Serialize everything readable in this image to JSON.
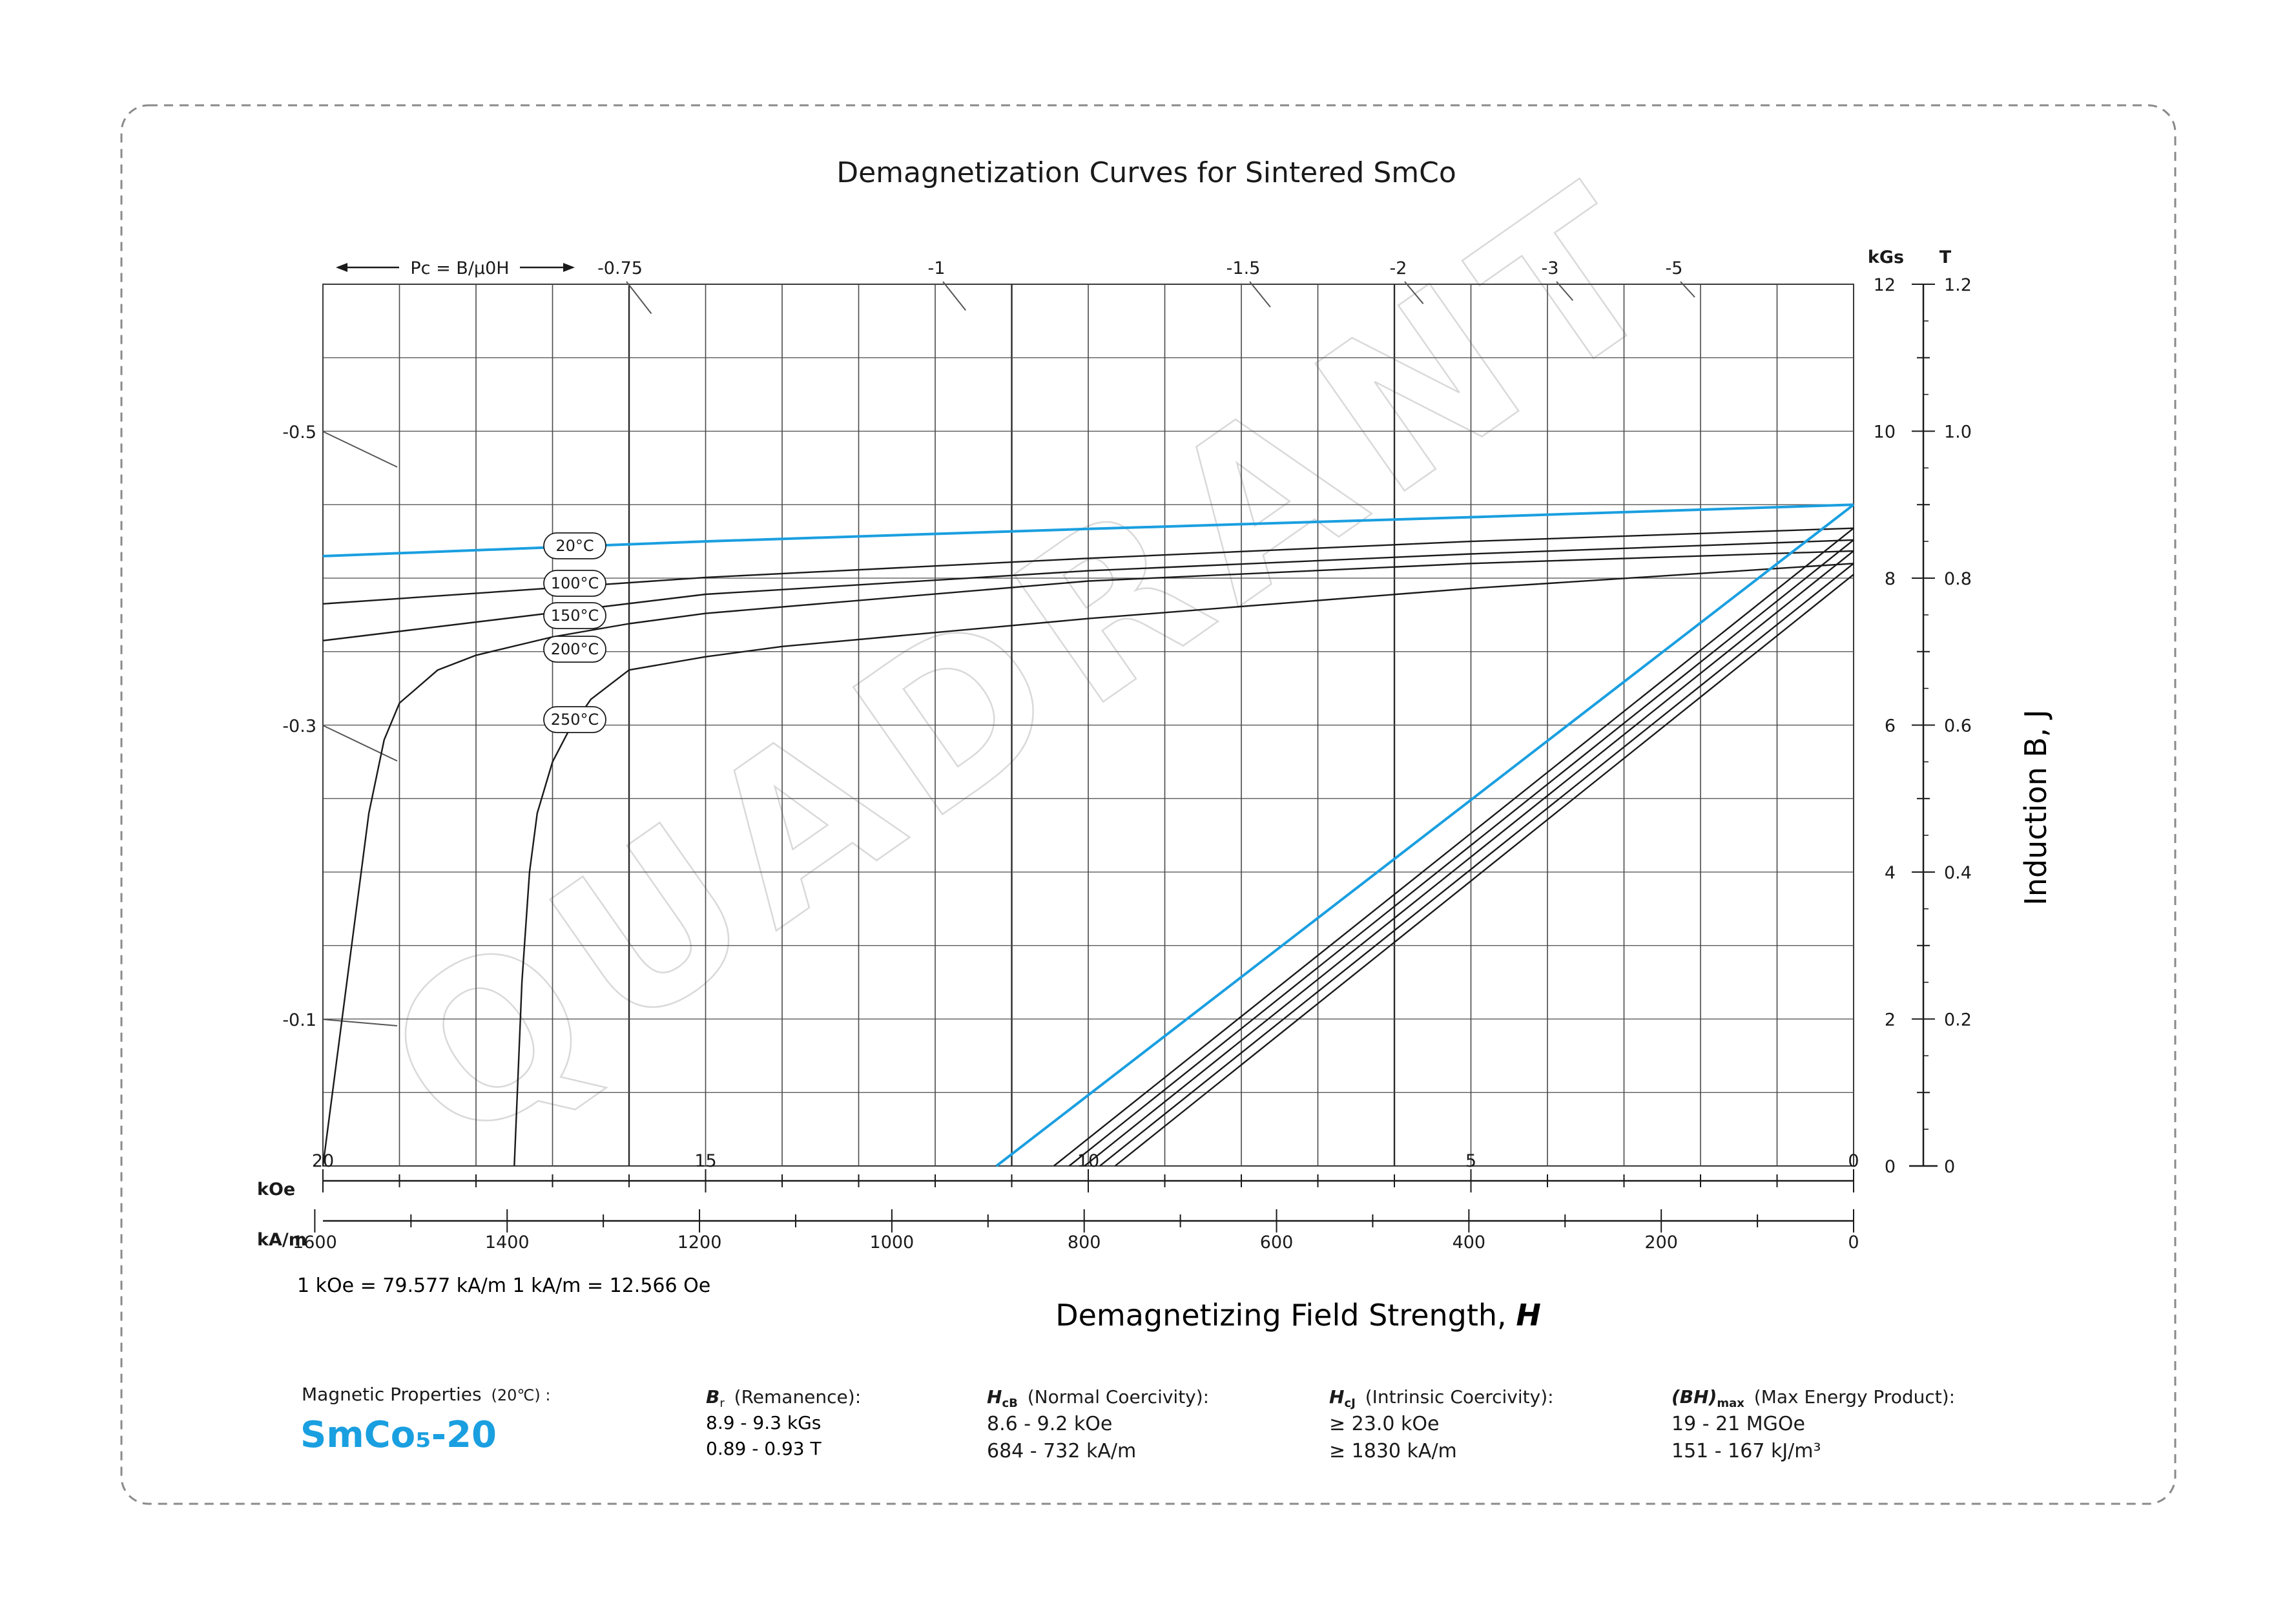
{
  "chart_data": {
    "type": "line",
    "title": "Demagnetization Curves for Sintered SmCo",
    "xlabel": "Demagnetizing Field Strength, H",
    "ylabel": "Induction B, J",
    "x_unit_top": "kOe",
    "x_unit_bottom": "kA/m",
    "y_unit_left": "kGs",
    "y_unit_right": "T",
    "xlim": [
      20,
      0
    ],
    "ylim": [
      0,
      12
    ],
    "x_ticks_koe": [
      "20",
      "15",
      "10",
      "5",
      "0"
    ],
    "x_ticks_kam": [
      "1600",
      "1400",
      "1200",
      "1000",
      "800",
      "600",
      "400",
      "200",
      "0"
    ],
    "y_ticks_kgs": [
      "0",
      "2",
      "4",
      "6",
      "8",
      "10",
      "12"
    ],
    "y_ticks_t": [
      "0",
      "0.2",
      "0.4",
      "0.6",
      "0.8",
      "1.0",
      "1.2"
    ],
    "pc_header": "Pc = B/μ0H",
    "pc_labels_top": [
      "-0.75",
      "-1",
      "-1.5",
      "-2",
      "-3",
      "-5"
    ],
    "pc_labels_left": [
      "-0.5",
      "-0.3",
      "-0.1"
    ],
    "conversion_note": "1 kOe = 79.577 kA/m   1 kA/m = 12.566 Oe",
    "grid": true,
    "series": [
      {
        "name": "20°C",
        "color": "#1a9fe0",
        "kind": "J",
        "x": [
          20,
          15,
          10,
          5,
          0
        ],
        "y": [
          8.3,
          8.5,
          8.67,
          8.83,
          9.0
        ]
      },
      {
        "name": "100°C",
        "color": "#1a1a1a",
        "kind": "J",
        "x": [
          20,
          15,
          10,
          5,
          0
        ],
        "y": [
          7.65,
          8.01,
          8.27,
          8.5,
          8.68
        ]
      },
      {
        "name": "150°C",
        "color": "#1a1a1a",
        "kind": "J",
        "x": [
          20,
          15,
          10,
          5,
          0
        ],
        "y": [
          7.15,
          7.78,
          8.1,
          8.33,
          8.52
        ]
      },
      {
        "name": "200°C",
        "color": "#1a1a1a",
        "kind": "J",
        "x": [
          20,
          19.6,
          19.4,
          19.2,
          19.0,
          18.5,
          18.0,
          17.0,
          16.0,
          15.0,
          10.0,
          5.0,
          0
        ],
        "y": [
          0,
          3.2,
          4.8,
          5.8,
          6.3,
          6.75,
          6.95,
          7.2,
          7.38,
          7.52,
          7.96,
          8.2,
          8.37
        ]
      },
      {
        "name": "250°C",
        "color": "#1a1a1a",
        "kind": "J",
        "x": [
          17.5,
          17.4,
          17.3,
          17.2,
          17.0,
          16.8,
          16.5,
          16.0,
          15.0,
          14.0,
          10.0,
          5.0,
          0
        ],
        "y": [
          0,
          2.5,
          4.0,
          4.8,
          5.5,
          5.9,
          6.35,
          6.75,
          6.93,
          7.07,
          7.45,
          7.86,
          8.2
        ]
      },
      {
        "name": "",
        "color": "#1a9fe0",
        "kind": "B",
        "x": [
          11.2,
          0
        ],
        "y": [
          0,
          9.0
        ]
      },
      {
        "name": "",
        "color": "#1a1a1a",
        "kind": "B",
        "x": [
          10.45,
          0
        ],
        "y": [
          0,
          8.68
        ]
      },
      {
        "name": "",
        "color": "#1a1a1a",
        "kind": "B",
        "x": [
          10.25,
          0
        ],
        "y": [
          0,
          8.52
        ]
      },
      {
        "name": "",
        "color": "#1a1a1a",
        "kind": "B",
        "x": [
          10.05,
          0
        ],
        "y": [
          0,
          8.37
        ]
      },
      {
        "name": "",
        "color": "#1a1a1a",
        "kind": "B",
        "x": [
          9.85,
          0
        ],
        "y": [
          0,
          8.2
        ]
      },
      {
        "name": "",
        "color": "#1a1a1a",
        "kind": "B",
        "x": [
          9.65,
          0
        ],
        "y": [
          0,
          8.05
        ]
      }
    ]
  },
  "properties": {
    "heading": "Magnetic Properties",
    "heading_temp": "(20℃) :",
    "grade": "SmCo₅-20",
    "remanence": {
      "symbol": "Br",
      "label": "(Remanence):",
      "v1": "8.9 - 9.3 kGs",
      "v2": "0.89 - 0.93 T"
    },
    "normal_coercivity": {
      "symbol": "HcB",
      "label": "(Normal Coercivity):",
      "v1": "8.6 - 9.2 kOe",
      "v2": "684 - 732 kA/m"
    },
    "intrinsic_coercivity": {
      "symbol": "HcJ",
      "label": "(Intrinsic Coercivity):",
      "v1": "≥ 23.0 kOe",
      "v2": "≥ 1830 kA/m"
    },
    "energy_product": {
      "symbol": "(BH)max",
      "label": "(Max Energy Product):",
      "v1": "19 - 21 MGOe",
      "v2": "151 - 167 kJ/m³"
    }
  },
  "watermark": "QUADRANT",
  "colors": {
    "accent": "#1a9fe0",
    "frame": "#888888"
  }
}
